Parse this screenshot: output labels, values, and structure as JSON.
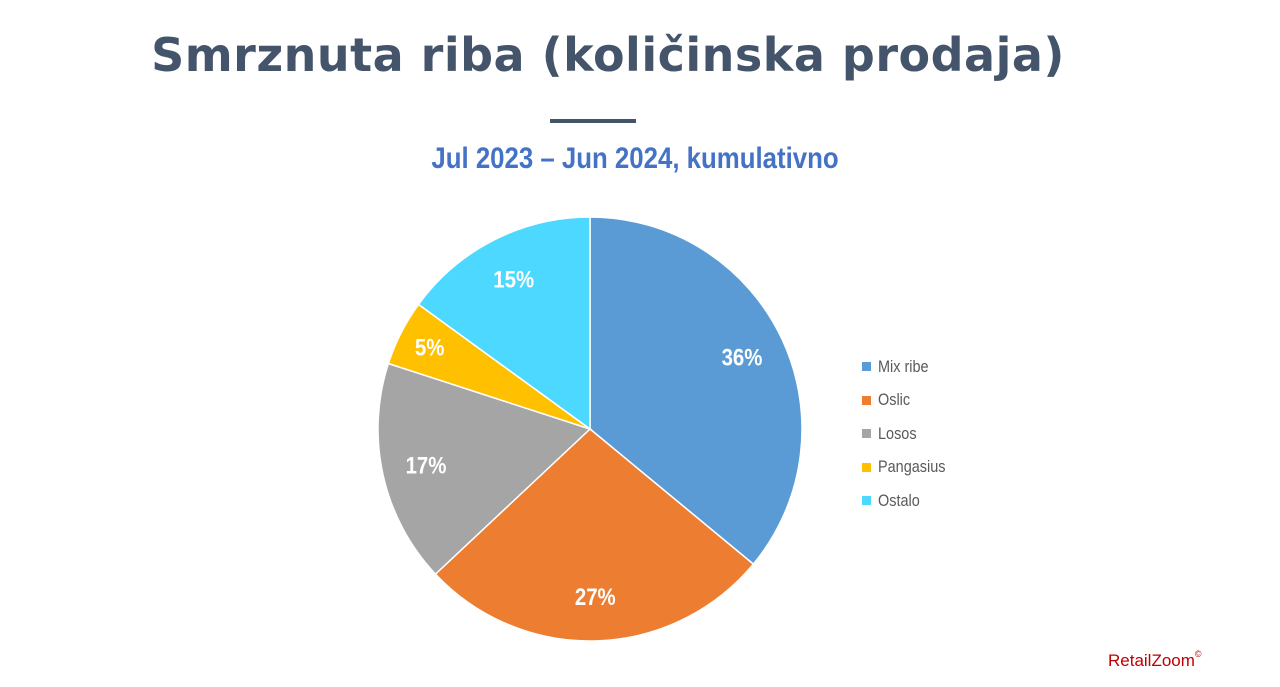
{
  "title": "Smrznuta riba (količinska prodaja)",
  "subtitle": "Jul 2023 – Jun 2024, kumulativno",
  "brand": {
    "name": "RetailZoom",
    "mark": "©"
  },
  "chart_data": {
    "type": "pie",
    "categories": [
      "Mix ribe",
      "Oslic",
      "Losos",
      "Pangasius",
      "Ostalo"
    ],
    "values": [
      36,
      27,
      17,
      5,
      15
    ],
    "labels": [
      "36%",
      "27%",
      "17%",
      "5%",
      "15%"
    ],
    "colors": [
      "#5b9bd5",
      "#ed7d31",
      "#a5a5a5",
      "#ffc000",
      "#4dd9ff"
    ],
    "start_angle": "top, clockwise",
    "legend_position": "right"
  }
}
